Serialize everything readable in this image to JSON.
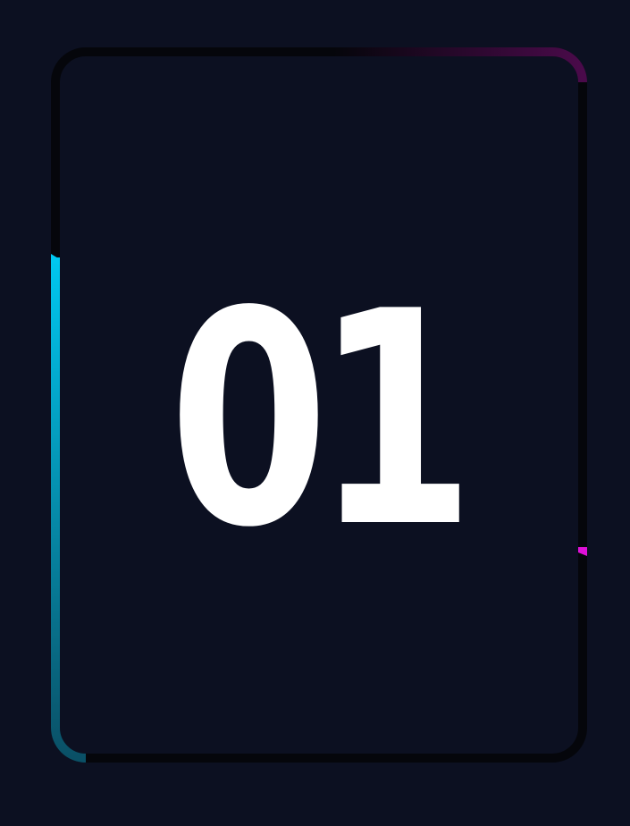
{
  "card": {
    "number": "01"
  },
  "colors": {
    "background": "#0c1021",
    "frame_dark": "#05060b",
    "accent_cyan": "#00c8f0",
    "accent_magenta": "#e010d8",
    "text": "#ffffff"
  }
}
